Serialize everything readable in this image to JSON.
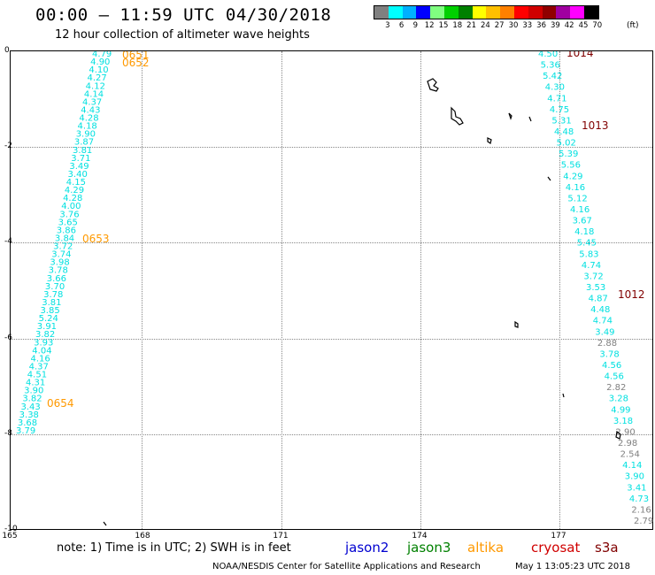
{
  "header": {
    "title": "00:00 – 11:59 UTC 04/30/2018",
    "subtitle": "12 hour collection of altimeter wave heights"
  },
  "legend": {
    "unit": "(ft)",
    "colors": [
      "#808080",
      "#00ffff",
      "#00b0ff",
      "#0000ff",
      "#80ff80",
      "#00d000",
      "#008000",
      "#ffff00",
      "#ffc000",
      "#ff8000",
      "#ff0000",
      "#d00000",
      "#900000",
      "#a000a0",
      "#ff00ff",
      "#000000"
    ],
    "labels": [
      "3",
      "6",
      "9",
      "12",
      "15",
      "18",
      "21",
      "24",
      "27",
      "30",
      "33",
      "36",
      "39",
      "42",
      "45",
      "70"
    ]
  },
  "axes": {
    "y_ticks": [
      "0",
      "-2",
      "-4",
      "-6",
      "-8",
      "-10"
    ],
    "x_ticks": [
      "165",
      "168",
      "171",
      "174",
      "177"
    ]
  },
  "satellites": {
    "jason2": "jason2",
    "jason3": "jason3",
    "altika": "altika",
    "cryosat": "cryosat",
    "s3a": "s3a"
  },
  "note": "note: 1) Time is in UTC; 2) SWH is in feet",
  "credit": "NOAA/NESDIS Center for Satellite Applications and Research",
  "timestamp": "May  1 13:05:23 UTC 2018",
  "tracks": {
    "left_track_values": [
      "4.79",
      "4.90",
      "4.10",
      "4.27",
      "4.12",
      "4.14",
      "4.37",
      "4.43",
      "4.28",
      "4.18",
      "3.90",
      "3.87",
      "3.81",
      "3.71",
      "3.49",
      "3.40",
      "4.15",
      "4.29",
      "4.28",
      "4.00",
      "3.76",
      "3.65",
      "3.86",
      "3.84",
      "3.72",
      "3.74",
      "3.98",
      "3.78",
      "3.66",
      "3.70",
      "3.78",
      "3.81",
      "3.85",
      "5.24",
      "3.91",
      "3.82",
      "3.93",
      "4.04",
      "4.16",
      "4.37",
      "4.51",
      "4.31",
      "3.90",
      "3.82",
      "3.43",
      "3.38",
      "3.68",
      "3.79"
    ],
    "left_track_labels": [
      "0651",
      "0652",
      "0653",
      "0654"
    ],
    "right_track_values": [
      "4.50",
      "5.36",
      "5.42",
      "4.30",
      "4.71",
      "4.75",
      "5.31",
      "4.48",
      "5.02",
      "5.39",
      "5.56",
      "4.29",
      "4.16",
      "5.12",
      "4.16",
      "3.67",
      "4.18",
      "5.45",
      "5.83",
      "4.74",
      "3.72",
      "3.53",
      "4.87",
      "4.48",
      "4.74",
      "3.49",
      "2.88",
      "3.78",
      "4.56",
      "4.56",
      "2.82",
      "3.28",
      "4.99",
      "3.18",
      "2.90",
      "2.98",
      "2.54",
      "4.14",
      "3.90",
      "3.41",
      "4.73",
      "2.16",
      "2.79"
    ],
    "right_track_labels": [
      "1014",
      "1013",
      "1012"
    ]
  }
}
